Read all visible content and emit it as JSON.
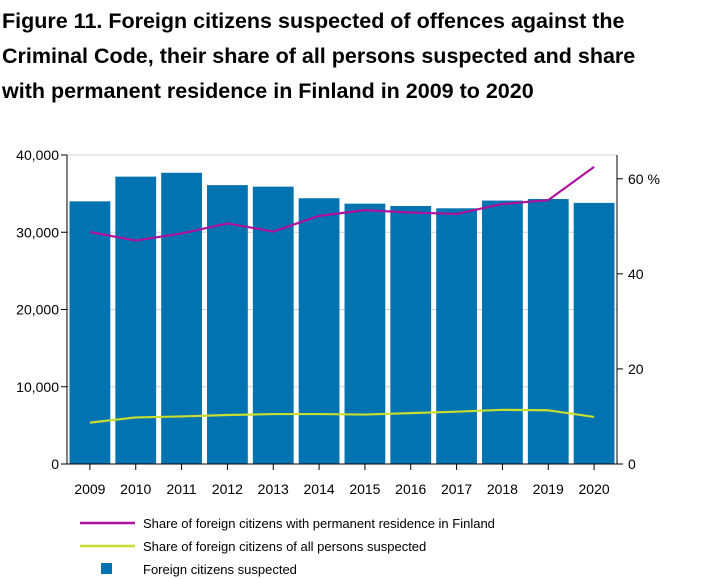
{
  "title_lines": [
    "Figure 11. Foreign citizens suspected of offences against the",
    "Criminal Code, their share of all persons suspected and share",
    "with permanent residence in Finland in 2009 to 2020"
  ],
  "chart_data": {
    "type": "bar",
    "title": "Figure 11. Foreign citizens suspected of offences against the Criminal Code, their share of all persons suspected and share with permanent residence in Finland in 2009 to 2020",
    "categories": [
      "2009",
      "2010",
      "2011",
      "2012",
      "2013",
      "2014",
      "2015",
      "2016",
      "2017",
      "2018",
      "2019",
      "2020"
    ],
    "series": [
      {
        "name": "Foreign citizens suspected",
        "kind": "bar",
        "axis": "left",
        "color": "#0073b0",
        "values": [
          34000,
          37200,
          37700,
          36100,
          35900,
          34400,
          33700,
          33400,
          33100,
          34100,
          34300,
          33800
        ]
      },
      {
        "name": "Share of foreign citizens with permanent residence in Finland",
        "kind": "line",
        "axis": "right",
        "color": "#b0119c",
        "values": [
          48.8,
          47.0,
          48.5,
          50.6,
          48.9,
          52.2,
          53.4,
          52.9,
          52.6,
          54.7,
          55.5,
          62.5
        ]
      },
      {
        "name": "Share of foreign citizens of all persons suspected",
        "kind": "line",
        "axis": "right",
        "color": "#c8dc32",
        "values": [
          8.7,
          9.8,
          10.0,
          10.3,
          10.5,
          10.5,
          10.4,
          10.7,
          11.0,
          11.4,
          11.3,
          9.9
        ]
      }
    ],
    "y_left": {
      "ylim": [
        0,
        40000
      ],
      "ticks": [
        0,
        10000,
        20000,
        30000,
        40000
      ],
      "tick_labels": [
        "0",
        "10,000",
        "20,000",
        "30,000",
        "40,000"
      ]
    },
    "y_right": {
      "ylim": [
        0,
        65
      ],
      "ticks": [
        0,
        20,
        40,
        60
      ],
      "tick_labels": [
        "0",
        "20",
        "40",
        "60 %"
      ]
    },
    "grid": true,
    "legend_placement": "bottom-left",
    "legend": [
      {
        "label": "Share of foreign citizens with permanent residence in Finland",
        "symbol": "line",
        "color": "#b0119c"
      },
      {
        "label": "Share of foreign citizens of all persons suspected",
        "symbol": "line",
        "color": "#c8dc32"
      },
      {
        "label": "Foreign citizens suspected",
        "symbol": "square",
        "color": "#0073b0"
      }
    ]
  }
}
